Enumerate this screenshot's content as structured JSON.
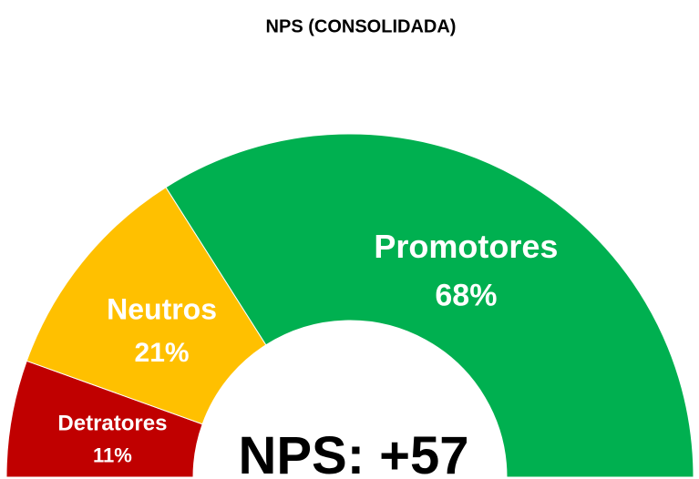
{
  "chart_data": {
    "type": "half-donut",
    "title": "NPS (CONSOLIDADA)",
    "categories": [
      "Detratores",
      "Neutros",
      "Promotores"
    ],
    "values": [
      11,
      21,
      68
    ],
    "value_labels": [
      "11%",
      "21%",
      "68%"
    ],
    "colors": [
      "#c00000",
      "#ffc000",
      "#00b050"
    ],
    "center_label": "NPS: +57"
  }
}
